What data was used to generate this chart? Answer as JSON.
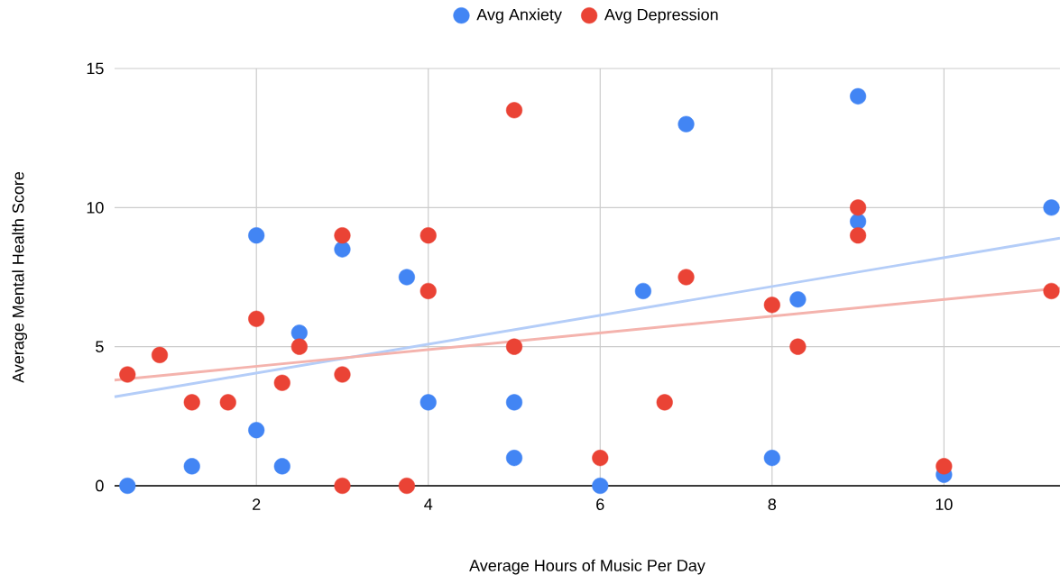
{
  "chart_data": {
    "type": "scatter",
    "xlabel": "Average Hours of Music Per Day",
    "ylabel": "Average Mental Health Score",
    "xlim": [
      0.35,
      11.35
    ],
    "ylim": [
      0,
      15
    ],
    "xticks": [
      2,
      4,
      6,
      8,
      10
    ],
    "yticks": [
      0,
      5,
      10,
      15
    ],
    "grid": true,
    "legend": "top",
    "series": [
      {
        "name": "Avg Anxiety",
        "marker": "circle",
        "color": "#4285f4",
        "x": [
          0.5,
          1.25,
          2,
          2,
          2.3,
          2.5,
          3,
          3.75,
          4,
          5,
          5,
          6,
          6.5,
          7,
          8,
          8.3,
          9,
          9,
          10,
          11.25
        ],
        "values": [
          0,
          0.7,
          9,
          2,
          0.7,
          5.5,
          8.5,
          7.5,
          3,
          1,
          3,
          0,
          7,
          13,
          1,
          6.7,
          14,
          9.5,
          0.4,
          10
        ]
      },
      {
        "name": "Avg Depression",
        "marker": "circle",
        "color": "#ea4335",
        "x": [
          0.5,
          0.875,
          1.25,
          1.67,
          2,
          2.3,
          2.5,
          3,
          3,
          3,
          3.75,
          4,
          4,
          5,
          5,
          6,
          6.75,
          7,
          8,
          8.3,
          9,
          9,
          10,
          11.25
        ],
        "values": [
          4,
          4.7,
          3,
          3,
          6,
          3.7,
          5,
          9,
          4,
          0,
          0,
          9,
          7,
          13.5,
          5,
          1,
          3,
          7.5,
          6.5,
          5,
          10,
          9,
          0.7,
          7
        ]
      },
      {
        "type": "line",
        "marker": "none",
        "color": "#b4cdf8",
        "x": [
          0.35,
          11.35
        ],
        "values": [
          3.2,
          8.9
        ]
      },
      {
        "type": "line",
        "marker": "none",
        "color": "#f4b3ad",
        "x": [
          0.35,
          11.35
        ],
        "values": [
          3.8,
          7.1
        ]
      }
    ]
  }
}
